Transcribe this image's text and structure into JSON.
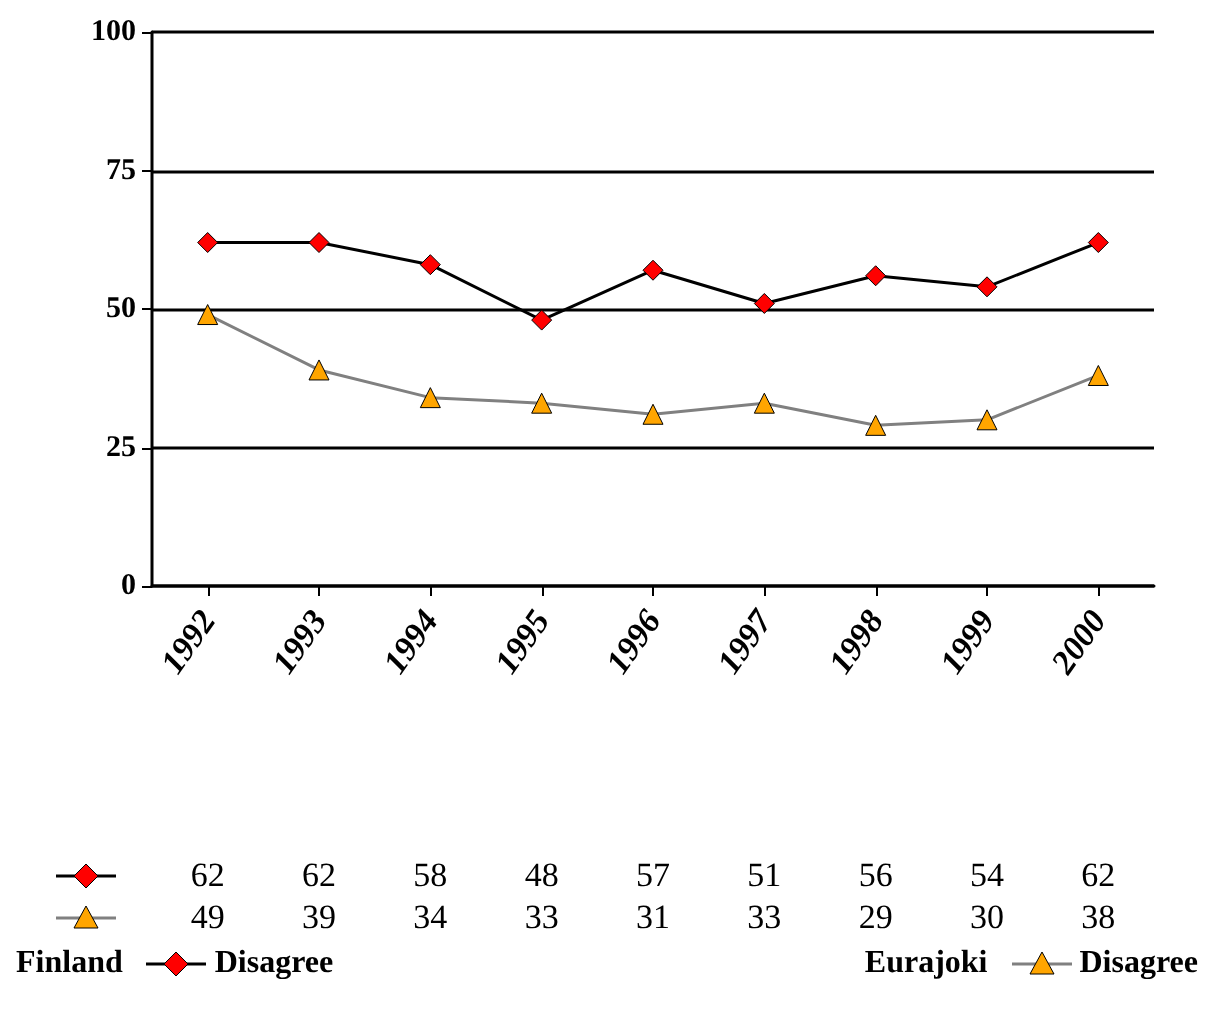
{
  "chart_data": {
    "type": "line",
    "categories": [
      "1992",
      "1993",
      "1994",
      "1995",
      "1996",
      "1997",
      "1998",
      "1999",
      "2000"
    ],
    "series": [
      {
        "name": "Disagree",
        "color": "#ff0000",
        "marker": "diamond",
        "values": [
          62,
          62,
          58,
          48,
          57,
          51,
          56,
          54,
          62
        ]
      },
      {
        "name": "Disagree",
        "color": "#ffa500",
        "marker": "triangle",
        "values": [
          49,
          39,
          34,
          33,
          31,
          33,
          29,
          30,
          38
        ]
      }
    ],
    "annotations": [
      "Finland",
      "Eurajoki"
    ],
    "ylim": [
      0,
      100
    ],
    "yticks": [
      0,
      25,
      50,
      75,
      100
    ],
    "grid": "y",
    "legend": "bottom",
    "data_labels": true
  }
}
